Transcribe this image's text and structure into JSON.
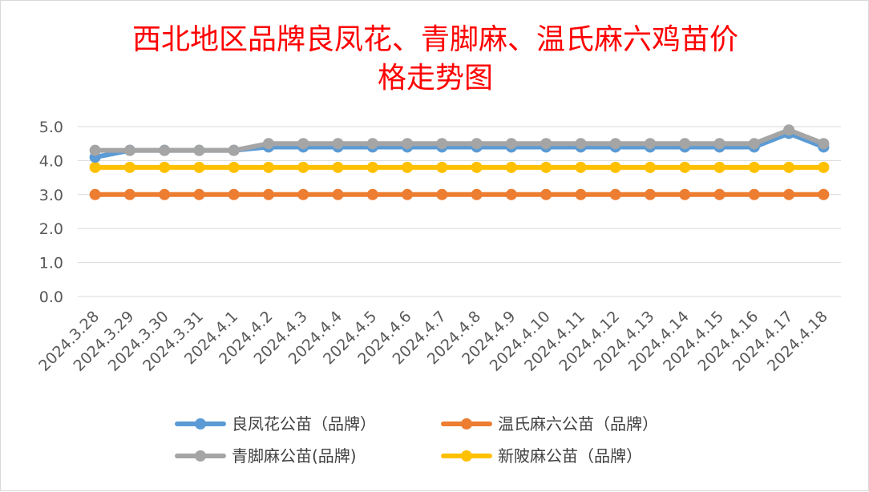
{
  "chart_data": {
    "type": "line",
    "title_lines": [
      "西北地区品牌良凤花、青脚麻、温氏麻六鸡苗价",
      "格走势图"
    ],
    "xlabel": "",
    "ylabel": "",
    "ylim": [
      0,
      5
    ],
    "yticks": [
      "0.0",
      "1.0",
      "2.0",
      "3.0",
      "4.0",
      "5.0"
    ],
    "grid": true,
    "legend_position": "bottom",
    "categories": [
      "2024.3.28",
      "2024.3.29",
      "2024.3.30",
      "2024.3.31",
      "2024.4.1",
      "2024.4.2",
      "2024.4.3",
      "2024.4.4",
      "2024.4.5",
      "2024.4.6",
      "2024.4.7",
      "2024.4.8",
      "2024.4.9",
      "2024.4.10",
      "2024.4.11",
      "2024.4.12",
      "2024.4.13",
      "2024.4.14",
      "2024.4.15",
      "2024.4.16",
      "2024.4.17",
      "2024.4.18"
    ],
    "series": [
      {
        "name": "温氏麻六公苗（品牌）",
        "color": "#ed7d31",
        "values": [
          3.0,
          3.0,
          3.0,
          3.0,
          3.0,
          3.0,
          3.0,
          3.0,
          3.0,
          3.0,
          3.0,
          3.0,
          3.0,
          3.0,
          3.0,
          3.0,
          3.0,
          3.0,
          3.0,
          3.0,
          3.0,
          3.0
        ]
      },
      {
        "name": "新陂麻公苗（品牌）",
        "color": "#ffc000",
        "values": [
          3.8,
          3.8,
          3.8,
          3.8,
          3.8,
          3.8,
          3.8,
          3.8,
          3.8,
          3.8,
          3.8,
          3.8,
          3.8,
          3.8,
          3.8,
          3.8,
          3.8,
          3.8,
          3.8,
          3.8,
          3.8,
          3.8
        ]
      },
      {
        "name": "良凤花公苗（品牌）",
        "color": "#5b9bd5",
        "values": [
          4.1,
          4.3,
          4.3,
          4.3,
          4.3,
          4.4,
          4.4,
          4.4,
          4.4,
          4.4,
          4.4,
          4.4,
          4.4,
          4.4,
          4.4,
          4.4,
          4.4,
          4.4,
          4.4,
          4.4,
          4.8,
          4.4
        ]
      },
      {
        "name": "青脚麻公苗(品牌)",
        "color": "#a5a5a5",
        "values": [
          4.3,
          4.3,
          4.3,
          4.3,
          4.3,
          4.5,
          4.5,
          4.5,
          4.5,
          4.5,
          4.5,
          4.5,
          4.5,
          4.5,
          4.5,
          4.5,
          4.5,
          4.5,
          4.5,
          4.5,
          4.9,
          4.5
        ]
      }
    ],
    "legend_order": [
      [
        "良凤花公苗（品牌）",
        "温氏麻六公苗（品牌）"
      ],
      [
        "青脚麻公苗(品牌)",
        "新陂麻公苗（品牌）"
      ]
    ]
  }
}
